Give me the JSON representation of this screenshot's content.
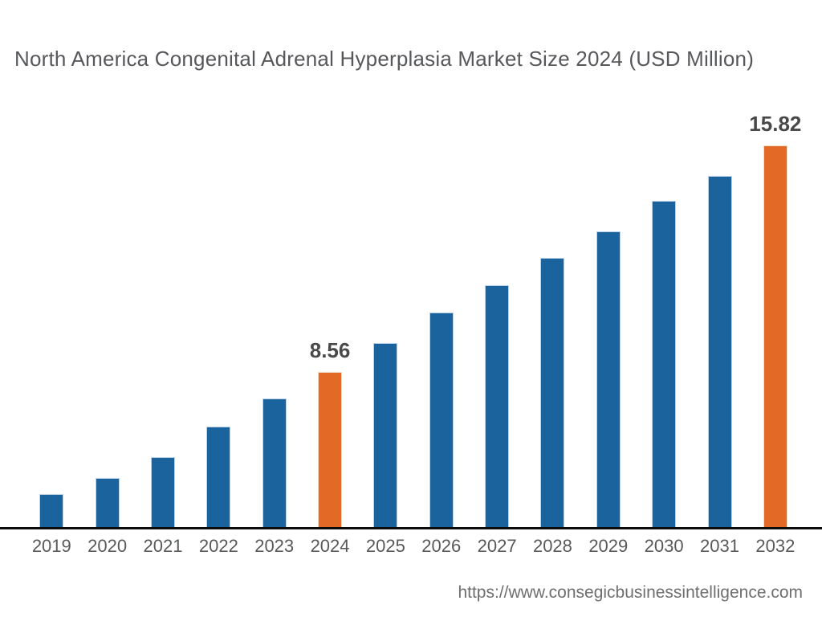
{
  "chart_data": {
    "type": "bar",
    "title": "North America Congenital Adrenal Hyperplasia Market Size 2024 (USD Million)",
    "xlabel": "",
    "ylabel": "",
    "categories": [
      "2019",
      "2020",
      "2021",
      "2022",
      "2023",
      "2024",
      "2025",
      "2026",
      "2027",
      "2028",
      "2029",
      "2030",
      "2031",
      "2032"
    ],
    "values": [
      4.65,
      5.16,
      5.83,
      6.81,
      7.71,
      8.56,
      9.49,
      10.47,
      11.34,
      12.22,
      13.07,
      14.04,
      14.84,
      15.82
    ],
    "data_labels": [
      null,
      null,
      null,
      null,
      null,
      "8.56",
      null,
      null,
      null,
      null,
      null,
      null,
      null,
      "15.82"
    ],
    "labeled_values": {
      "2024": 8.56,
      "2032": 15.82
    },
    "highlight_years": [
      "2024",
      "2032"
    ],
    "ylim": [
      3.57,
      17.39
    ],
    "axis_hidden": true,
    "grid": false,
    "legend": false
  },
  "colors": {
    "bar_default": "#1B639C",
    "bar_highlight": "#E26A26",
    "axis_line": "#0D0D0D",
    "title_text": "#57585B",
    "tick_text": "#58595A",
    "data_label_text": "#494949",
    "url_text": "#6F6F70"
  },
  "footer": {
    "url": "https://www.consegicbusinessintelligence.com"
  }
}
